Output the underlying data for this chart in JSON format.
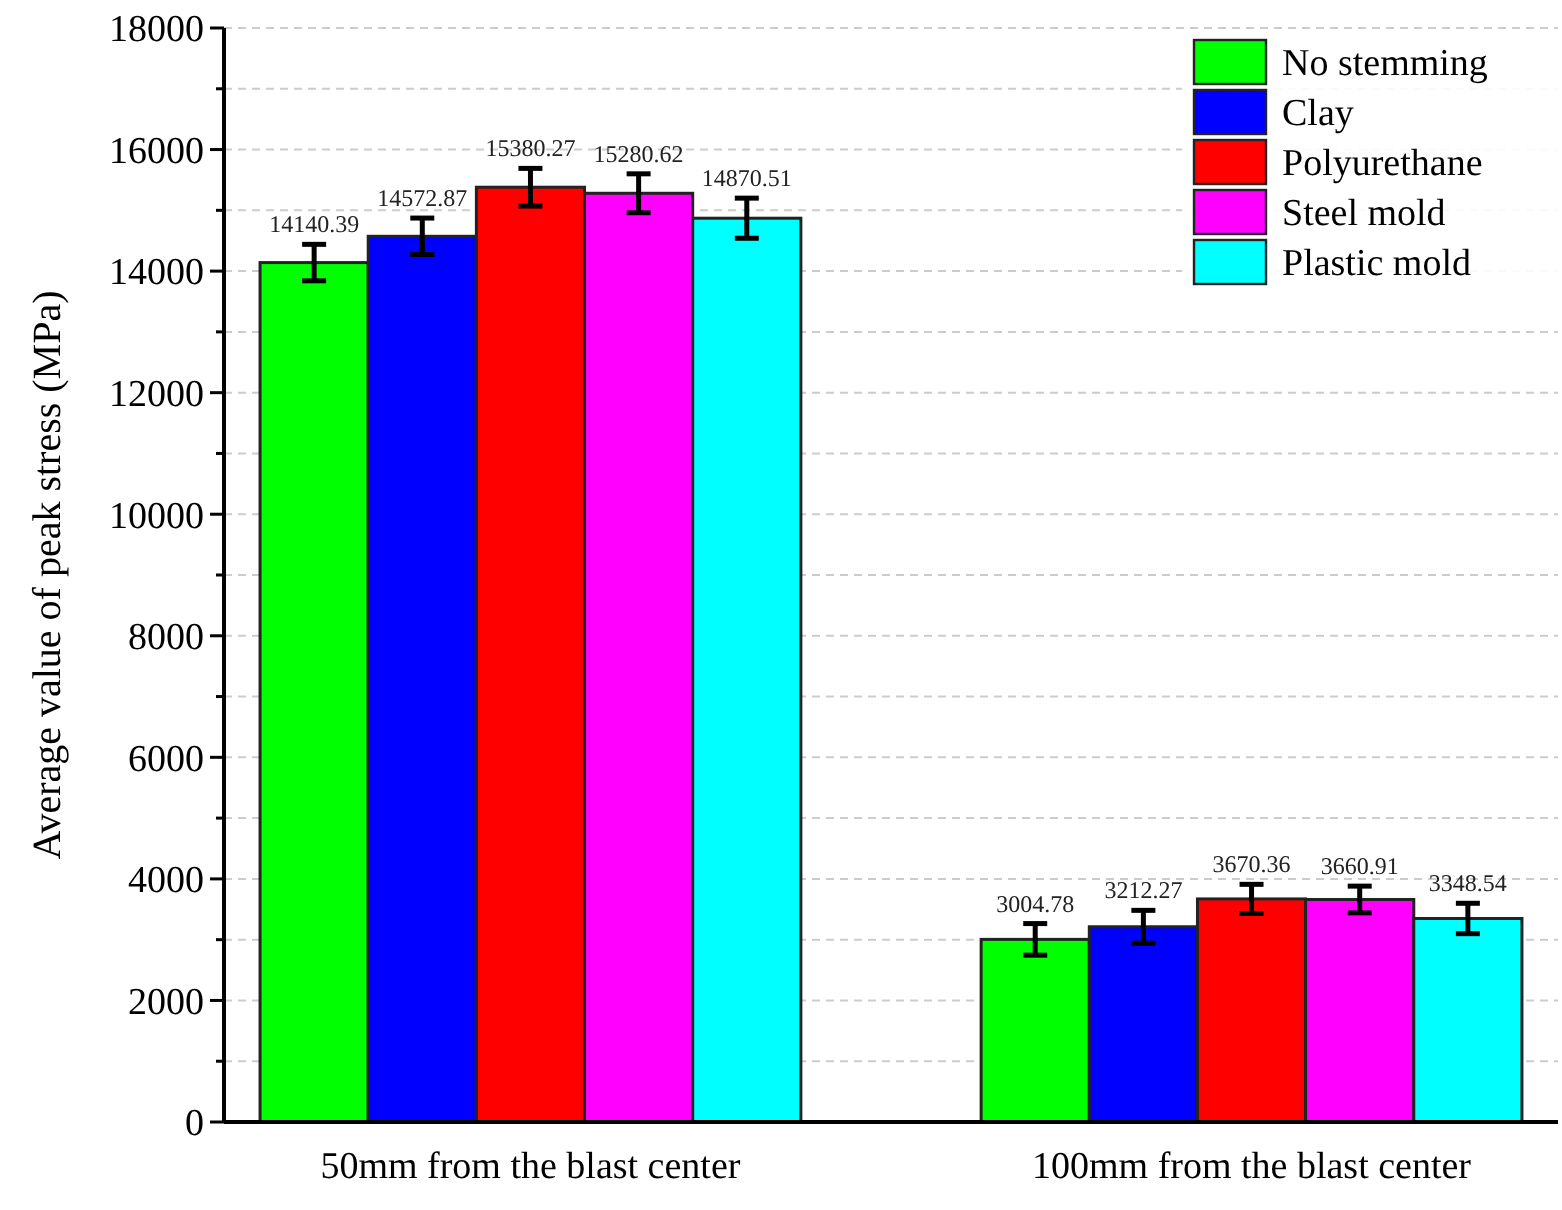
{
  "chart_data": {
    "type": "bar",
    "ylabel": "Average value of peak stress (MPa)",
    "categories": [
      "50mm from the blast center",
      "100mm from the blast center"
    ],
    "series": [
      {
        "name": "No stemming",
        "color": "#00ff00",
        "values": [
          14140.39,
          3004.78
        ],
        "errors": [
          300,
          260
        ]
      },
      {
        "name": "Clay",
        "color": "#0000ff",
        "values": [
          14572.87,
          3212.27
        ],
        "errors": [
          300,
          270
        ]
      },
      {
        "name": "Polyurethane",
        "color": "#ff0000",
        "values": [
          15380.27,
          3670.36
        ],
        "errors": [
          310,
          240
        ]
      },
      {
        "name": "Steel mold",
        "color": "#ff00ff",
        "values": [
          15280.62,
          3660.91
        ],
        "errors": [
          320,
          220
        ]
      },
      {
        "name": "Plastic mold",
        "color": "#00ffff",
        "values": [
          14870.51,
          3348.54
        ],
        "errors": [
          330,
          250
        ]
      }
    ],
    "ylim": [
      0,
      18000
    ],
    "yticks": [
      0,
      {
        "value": 1000,
        "label": null
      },
      2000,
      {
        "value": 3000,
        "label": null
      },
      4000,
      {
        "value": 5000,
        "label": null
      },
      6000,
      {
        "value": 7000,
        "label": null
      },
      8000,
      {
        "value": 9000,
        "label": null
      },
      10000,
      {
        "value": 11000,
        "label": null
      },
      12000,
      {
        "value": 13000,
        "label": null
      },
      14000,
      {
        "value": 15000,
        "label": null
      },
      16000,
      {
        "value": 17000,
        "label": null
      },
      18000
    ],
    "grid": "y",
    "legend": "top right",
    "data_labels": true
  }
}
